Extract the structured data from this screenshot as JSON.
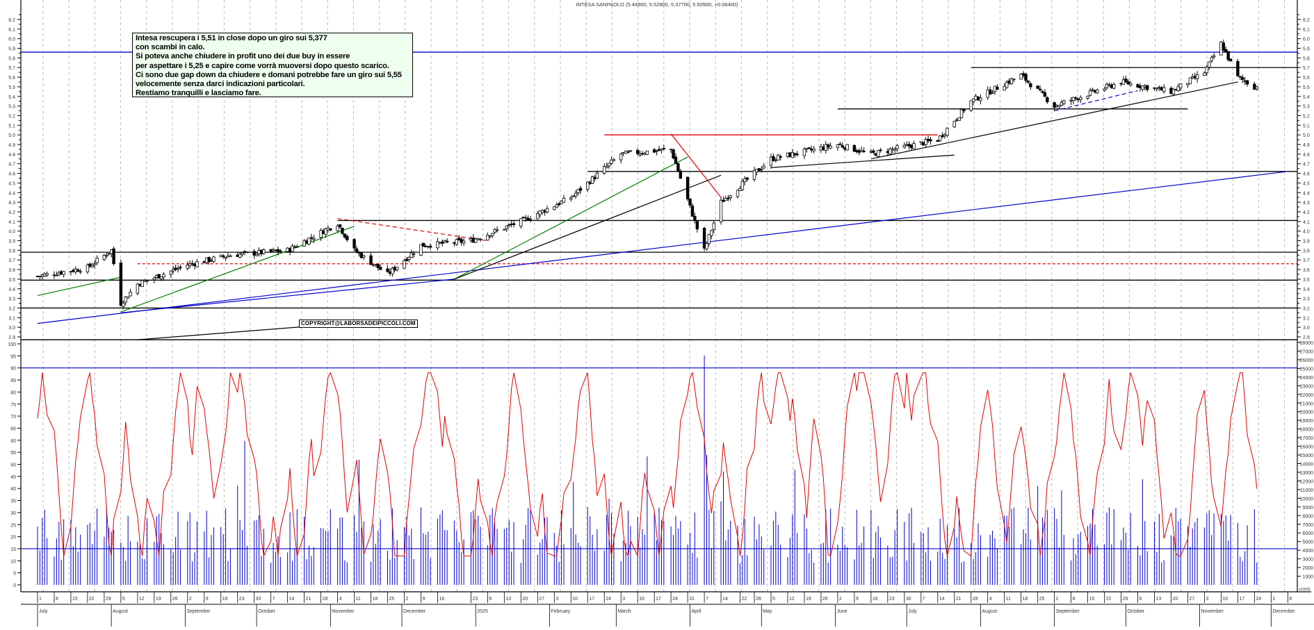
{
  "header": {
    "title": "INTESA SANPAOLO (5.44900, 5.52800, 5.37700, 5.50900, +0.06400)"
  },
  "annotation": {
    "lines": [
      "Intesa rescupera i 5,51 in close dopo un giro sui 5,377",
      "con scambi in calo.",
      "Si poteva anche chiudere in profit uno dei due buy in essere",
      "per aspettare i 5,25  e capire come vorrà muoversi dopo questo scarico.",
      "Ci sono due gap down da chiudere e domani potrebbe fare un giro sui 5,55",
      "velocemente senza darci indicazioni particolari.",
      "Restiamo tranquilli e lasciamo fare."
    ]
  },
  "copyright": "COPYRIGHT@LABORSADEIPICCOLI.COM",
  "colors": {
    "candle": "#000000",
    "oscillator": "#e00000",
    "volume": "#0000cc",
    "trend_blue": "#0000cc",
    "trend_green": "#008000",
    "trend_red": "#e00000",
    "grid": "#bbbbbb"
  },
  "chart_data": [
    {
      "type": "candlestick",
      "title": "INTESA SANPAOLO (5.44900, 5.52800, 5.37700, 5.50900, +0.06400)",
      "last": {
        "open": 5.449,
        "high": 5.528,
        "low": 5.377,
        "close": 5.509,
        "change": 0.064
      },
      "ylabel": "Price",
      "ylim": [
        2.9,
        6.2
      ],
      "yticks": [
        2.9,
        3.0,
        3.1,
        3.2,
        3.3,
        3.4,
        3.5,
        3.6,
        3.7,
        3.8,
        3.9,
        4.0,
        4.1,
        4.2,
        4.3,
        4.4,
        4.5,
        4.6,
        4.7,
        4.8,
        4.9,
        5.0,
        5.1,
        5.2,
        5.3,
        5.4,
        5.5,
        5.6,
        5.7,
        5.8,
        5.9,
        6.0,
        6.1,
        6.2
      ],
      "grid": "vertical dashed",
      "horizontal_levels": [
        {
          "value": 5.86,
          "color": "blue",
          "style": "solid"
        },
        {
          "value": 5.7,
          "color": "black",
          "style": "solid",
          "x_from": "2025-07-28"
        },
        {
          "value": 5.27,
          "color": "black",
          "style": "solid",
          "x_from": "2025-06-02",
          "x_to": "2025-10-27"
        },
        {
          "value": 5.0,
          "color": "red",
          "style": "solid",
          "x_from": "2025-02-24",
          "x_to": "2025-07-14"
        },
        {
          "value": 4.62,
          "color": "black",
          "style": "solid",
          "x_from": "2025-02-17"
        },
        {
          "value": 4.11,
          "color": "black",
          "style": "solid",
          "x_from": "2024-11-04"
        },
        {
          "value": 3.78,
          "color": "black",
          "style": "solid"
        },
        {
          "value": 3.66,
          "color": "red",
          "style": "dashed",
          "x_from": "2024-08-12"
        },
        {
          "value": 3.49,
          "color": "black",
          "style": "solid"
        },
        {
          "value": 3.2,
          "color": "black",
          "style": "solid"
        },
        {
          "value": 2.87,
          "color": "black",
          "style": "solid"
        }
      ],
      "trendlines": [
        {
          "color": "blue",
          "from": [
            "2024-07-01",
            3.04
          ],
          "to": [
            "2025-12-08",
            4.62
          ]
        },
        {
          "color": "blue",
          "from": [
            "2024-08-05",
            3.15
          ],
          "to": [
            "2024-12-23",
            3.5
          ]
        },
        {
          "color": "green",
          "from": [
            "2024-07-01",
            3.33
          ],
          "to": [
            "2024-08-05",
            3.52
          ]
        },
        {
          "color": "green",
          "from": [
            "2024-08-05",
            3.16
          ],
          "to": [
            "2024-11-11",
            4.05
          ]
        },
        {
          "color": "green",
          "from": [
            "2024-12-23",
            3.5
          ],
          "to": [
            "2025-03-31",
            4.77
          ]
        },
        {
          "color": "black",
          "from": [
            "2024-12-23",
            3.5
          ],
          "to": [
            "2025-04-14",
            4.58
          ]
        },
        {
          "color": "red",
          "style": "dashed",
          "from": [
            "2024-11-04",
            4.13
          ],
          "to": [
            "2025-01-06",
            3.9
          ]
        },
        {
          "color": "red",
          "from": [
            "2025-03-24",
            5.01
          ],
          "to": [
            "2025-04-14",
            4.35
          ]
        },
        {
          "color": "black",
          "from": [
            "2025-05-05",
            4.66
          ],
          "to": [
            "2025-07-21",
            4.79
          ]
        },
        {
          "color": "black",
          "from": [
            "2025-06-16",
            4.75
          ],
          "to": [
            "2025-11-17",
            5.55
          ]
        },
        {
          "color": "blue",
          "style": "dashed",
          "from": [
            "2025-09-01",
            5.25
          ],
          "to": [
            "2025-10-06",
            5.46
          ]
        },
        {
          "color": "black",
          "from": [
            "2024-08-12",
            2.87
          ],
          "to": [
            "2024-10-28",
            3.02
          ]
        }
      ],
      "series": [
        {
          "name": "close_approx",
          "x": [
            "2024-07",
            "2024-08-05",
            "2024-09",
            "2024-10",
            "2024-11-04",
            "2024-11-25",
            "2024-12",
            "2025-01",
            "2025-02",
            "2025-03",
            "2025-04-07",
            "2025-05",
            "2025-06",
            "2025-07",
            "2025-08",
            "2025-09",
            "2025-10",
            "2025-11-10",
            "2025-11-24"
          ],
          "values": [
            3.55,
            3.2,
            3.7,
            3.78,
            4.1,
            3.55,
            3.85,
            4.05,
            4.4,
            4.85,
            3.8,
            4.8,
            4.85,
            4.9,
            5.6,
            5.3,
            5.55,
            5.95,
            5.51
          ]
        }
      ]
    },
    {
      "type": "line+bar",
      "series": [
        {
          "name": "oscillator",
          "color": "red",
          "ylim": [
            0,
            100
          ],
          "yticks": [
            0,
            5,
            10,
            15,
            20,
            25,
            30,
            35,
            40,
            45,
            50,
            55,
            60,
            65,
            70,
            75,
            80,
            85,
            90,
            95,
            100
          ],
          "levels": [
            90,
            15
          ]
        },
        {
          "name": "volume",
          "color": "blue",
          "ylim": [
            0,
            28000
          ],
          "unit": "x10000",
          "yticks": [
            1000,
            2000,
            3000,
            4000,
            5000,
            6000,
            7000,
            8000,
            9000,
            10000,
            11000,
            12000,
            13000,
            14000,
            15000,
            16000,
            17000,
            18000,
            19000,
            20000,
            21000,
            22000,
            23000,
            24000,
            25000,
            26000,
            27000,
            28000
          ]
        }
      ]
    }
  ],
  "x_axis": {
    "day_ticks": [
      "1",
      "8",
      "15",
      "22",
      "29",
      "5",
      "12",
      "19",
      "26",
      "2",
      "9",
      "16",
      "23",
      "30",
      "7",
      "14",
      "21",
      "28",
      "4",
      "11",
      "18",
      "25",
      "2",
      "9",
      "16",
      "23",
      "6",
      "13",
      "20",
      "27",
      "3",
      "10",
      "17",
      "24",
      "3",
      "10",
      "17",
      "24",
      "31",
      "7",
      "14",
      "22",
      "28",
      "5",
      "12",
      "19",
      "26",
      "2",
      "9",
      "16",
      "23",
      "30",
      "7",
      "14",
      "21",
      "28",
      "4",
      "11",
      "18",
      "25",
      "1",
      "8",
      "15",
      "22",
      "29",
      "6",
      "13",
      "20",
      "27",
      "3",
      "10",
      "17",
      "24",
      "1",
      "8"
    ],
    "months": [
      "July",
      "August",
      "September",
      "October",
      "November",
      "December",
      "2025",
      "February",
      "March",
      "April",
      "May",
      "June",
      "July",
      "August",
      "September",
      "October",
      "November",
      "December"
    ]
  }
}
